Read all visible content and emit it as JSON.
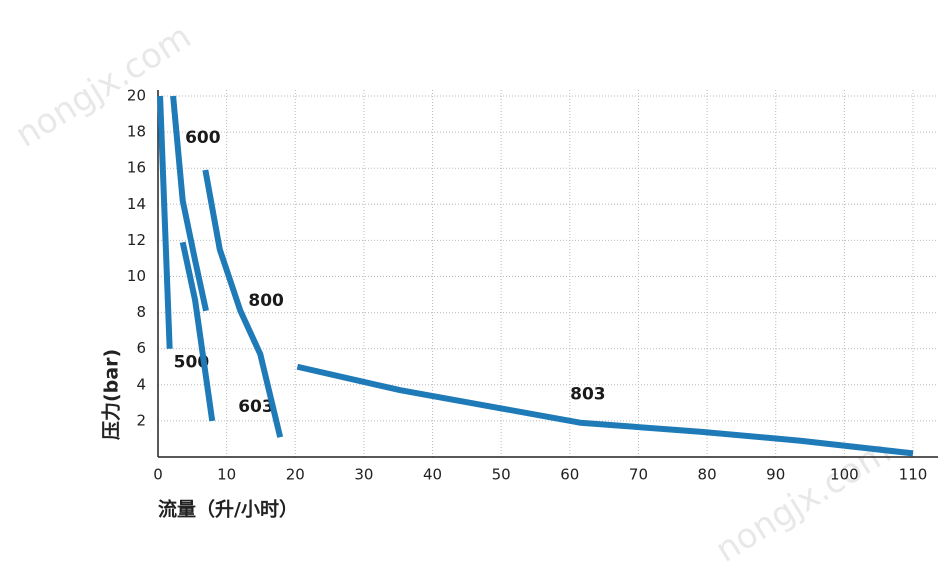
{
  "chart_data": {
    "type": "line",
    "x_label": "流量（升/小时）",
    "y_label": "压力(bar)",
    "watermark": "nongjx.com",
    "xlim": [
      0,
      110
    ],
    "xticks": [
      0,
      10,
      20,
      30,
      40,
      50,
      60,
      70,
      80,
      90,
      100,
      110
    ],
    "ylim": [
      0,
      20
    ],
    "yticks": [
      2,
      4,
      6,
      8,
      10,
      12,
      14,
      16,
      18,
      20
    ],
    "grid": true,
    "series": [
      {
        "name": "500",
        "color": "#1f7ab8",
        "x": [
          0.3,
          1.7
        ],
        "values": [
          20,
          6
        ]
      },
      {
        "name": "600",
        "color": "#1f7ab8",
        "x": [
          2.2,
          3.6,
          5.4,
          7.0
        ],
        "values": [
          20,
          14.2,
          10.9,
          8.1
        ]
      },
      {
        "name": "603",
        "color": "#1f7ab8",
        "x": [
          3.6,
          5.4,
          7.9
        ],
        "values": [
          11.9,
          8.7,
          2.0
        ]
      },
      {
        "name": "800",
        "color": "#1f7ab8",
        "x": [
          6.9,
          9.0,
          12.0,
          14.9,
          17.8
        ],
        "values": [
          15.9,
          11.5,
          8.1,
          5.7,
          1.1
        ]
      },
      {
        "name": "803",
        "color": "#1f7ab8",
        "x": [
          20.3,
          35.3,
          49.9,
          61.5,
          79,
          93.6,
          110
        ],
        "values": [
          5.0,
          3.7,
          2.7,
          1.9,
          1.4,
          0.9,
          0.2
        ]
      }
    ]
  }
}
